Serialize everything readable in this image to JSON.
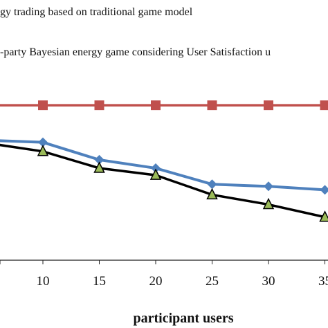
{
  "chart_data": {
    "type": "line",
    "xlabel": "participant users",
    "ylabel": "",
    "x": [
      5,
      10,
      15,
      20,
      25,
      30,
      35
    ],
    "x_tick_labels": [
      "10",
      "15",
      "20",
      "25",
      "30",
      "35"
    ],
    "xlim": [
      5,
      36
    ],
    "ylim": [
      0,
      1
    ],
    "grid": false,
    "legend_position": "top",
    "legend_lines": [
      "gy trading based on traditional game model",
      "-party Bayesian energy game considering User Satisfaction u"
    ],
    "series": [
      {
        "name": "",
        "color": "#c0504d",
        "marker": "square",
        "values": [
          0.93,
          0.93,
          0.93,
          0.93,
          0.93,
          0.93,
          0.93
        ]
      },
      {
        "name": "",
        "color": "#4f81bd",
        "marker": "diamond",
        "values": [
          0.68,
          0.665,
          0.54,
          0.48,
          0.365,
          0.35,
          0.325
        ]
      },
      {
        "name": "",
        "color": "#000000",
        "marker": "triangle",
        "marker_fill": "#9bbb59",
        "values": [
          0.66,
          0.6,
          0.48,
          0.43,
          0.29,
          0.22,
          0.13
        ]
      }
    ]
  }
}
